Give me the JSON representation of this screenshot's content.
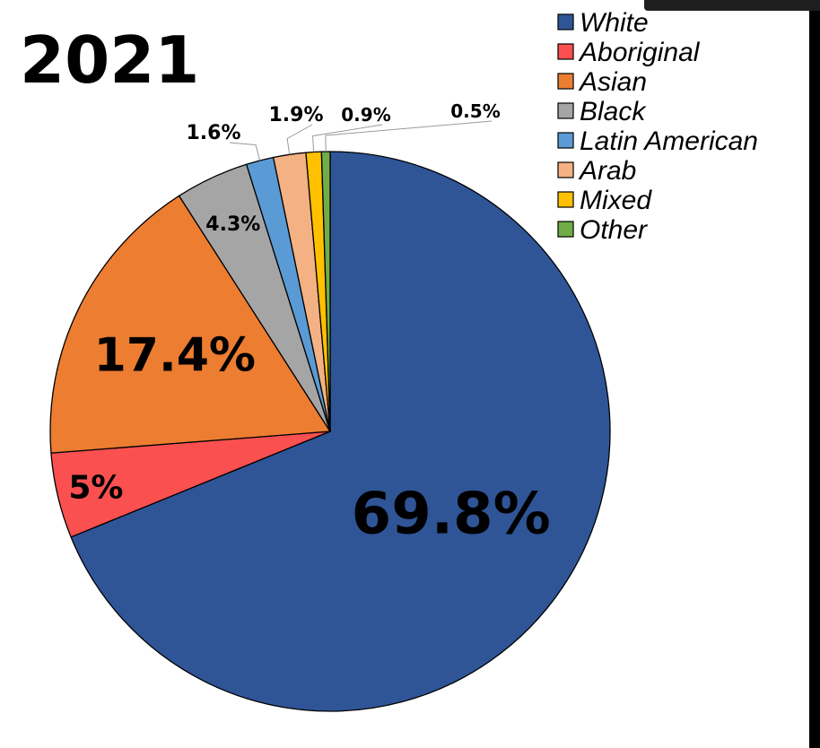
{
  "chart_data": {
    "type": "pie",
    "title": "2021",
    "start_angle_deg": 0,
    "direction": "clockwise",
    "legend_position": "top-right",
    "slices": [
      {
        "name": "White",
        "value": 69.8,
        "label": "69.8%",
        "color": "#2f5597"
      },
      {
        "name": "Aboriginal",
        "value": 5.0,
        "label": "5%",
        "color": "#fa5050"
      },
      {
        "name": "Asian",
        "value": 17.4,
        "label": "17.4%",
        "color": "#ed7d31"
      },
      {
        "name": "Black",
        "value": 4.3,
        "label": "4.3%",
        "color": "#a5a5a5"
      },
      {
        "name": "Latin American",
        "value": 1.6,
        "label": "1.6%",
        "color": "#5b9bd5"
      },
      {
        "name": "Arab",
        "value": 1.9,
        "label": "1.9%",
        "color": "#f4b183"
      },
      {
        "name": "Mixed",
        "value": 0.9,
        "label": "0.9%",
        "color": "#ffc000"
      },
      {
        "name": "Other",
        "value": 0.5,
        "label": "0.5%",
        "color": "#70ad47"
      }
    ]
  }
}
